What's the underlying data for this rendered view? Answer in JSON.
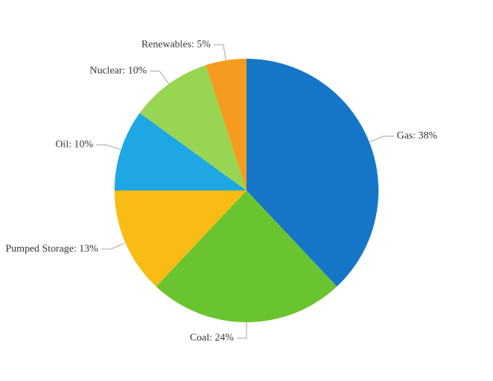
{
  "chart_data": {
    "type": "pie",
    "values": [
      38,
      24,
      13,
      10,
      10,
      5
    ],
    "value_labels": [
      "Gas: 38%",
      "Coal: 24%",
      "Pumped Storage: 13%",
      "Oil: 10%",
      "Nuclear: 10%",
      "Renewables: 5%"
    ],
    "colors": [
      "#1576c8",
      "#6ac42f",
      "#f9bc14",
      "#1ea7e3",
      "#97d553",
      "#f59c20"
    ]
  }
}
